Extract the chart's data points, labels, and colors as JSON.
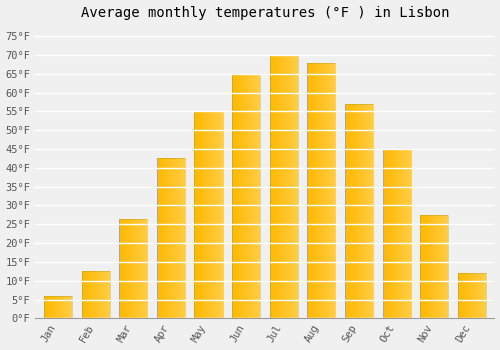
{
  "title": "Average monthly temperatures (°F ) in Lisbon",
  "months": [
    "Jan",
    "Feb",
    "Mar",
    "Apr",
    "May",
    "Jun",
    "Jul",
    "Aug",
    "Sep",
    "Oct",
    "Nov",
    "Dec"
  ],
  "values": [
    6,
    12.5,
    26.5,
    42.5,
    55,
    65,
    70,
    68,
    57,
    45,
    27.5,
    12
  ],
  "bar_color_left": "#FFB800",
  "bar_color_right": "#FFCC44",
  "ylim": [
    0,
    78
  ],
  "yticks": [
    0,
    5,
    10,
    15,
    20,
    25,
    30,
    35,
    40,
    45,
    50,
    55,
    60,
    65,
    70,
    75
  ],
  "background_color": "#f0f0f0",
  "grid_color": "#ffffff",
  "title_fontsize": 10,
  "tick_fontsize": 7.5,
  "font_family": "monospace"
}
